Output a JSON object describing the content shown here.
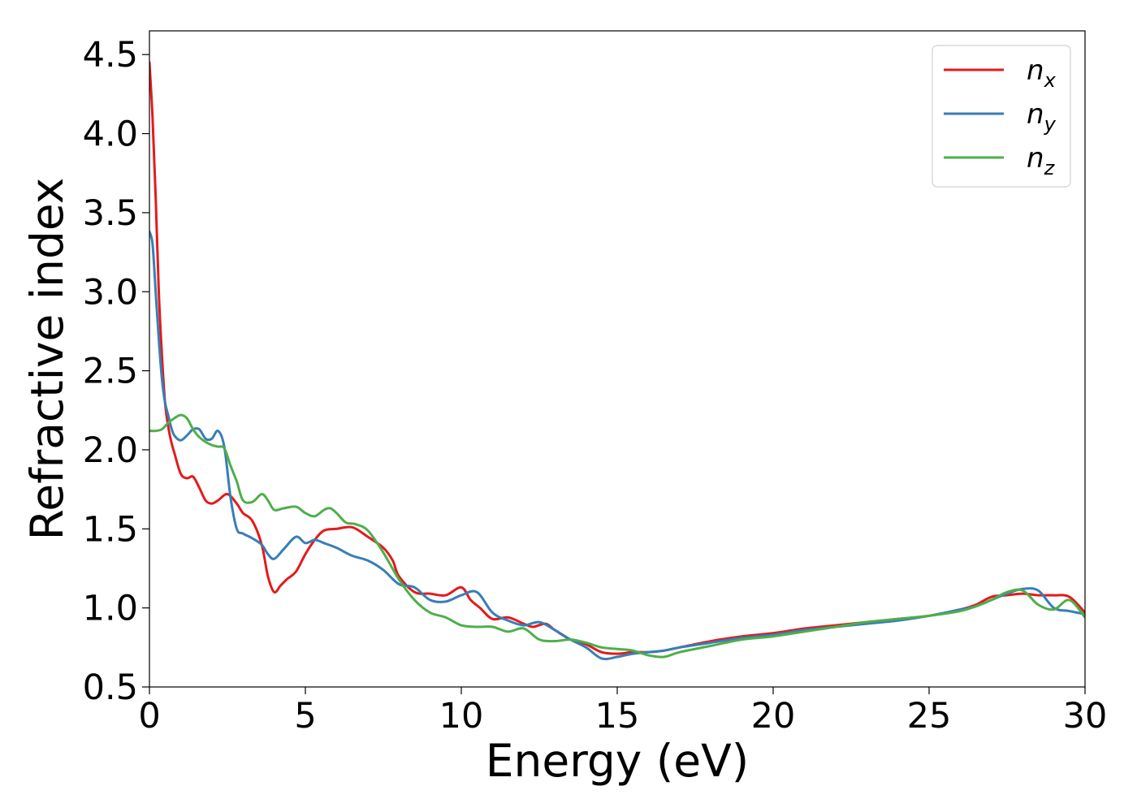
{
  "chart_data": {
    "type": "line",
    "xlabel": "Energy (eV)",
    "ylabel": "Refractive index",
    "xlim": [
      0,
      30
    ],
    "ylim": [
      0.5,
      4.65
    ],
    "xticks": [
      "0",
      "5",
      "10",
      "15",
      "20",
      "25",
      "30"
    ],
    "yticks": [
      "0.5",
      "1.0",
      "1.5",
      "2.0",
      "2.5",
      "3.0",
      "3.5",
      "4.0",
      "4.5"
    ],
    "xtick_values": [
      0,
      5,
      10,
      15,
      20,
      25,
      30
    ],
    "ytick_values": [
      0.5,
      1.0,
      1.5,
      2.0,
      2.5,
      3.0,
      3.5,
      4.0,
      4.5
    ],
    "grid": false,
    "legend_position": "top-right",
    "series": [
      {
        "name": "n",
        "subscript": "x",
        "color": "#e41a1c",
        "x": [
          0,
          0.1,
          0.2,
          0.3,
          0.4,
          0.5,
          0.6,
          0.7,
          0.8,
          1.0,
          1.2,
          1.4,
          1.6,
          1.8,
          2.0,
          2.2,
          2.5,
          2.8,
          3.0,
          3.3,
          3.6,
          3.8,
          4.0,
          4.2,
          4.4,
          4.7,
          5.0,
          5.3,
          5.6,
          6.0,
          6.5,
          7.0,
          7.5,
          7.8,
          8.0,
          8.5,
          9.0,
          9.5,
          10.0,
          10.3,
          10.6,
          11.0,
          11.5,
          12.0,
          12.3,
          12.7,
          13.0,
          13.5,
          14.0,
          14.5,
          15.0,
          15.5,
          16.0,
          16.5,
          17.0,
          18.0,
          19.0,
          20.0,
          21.0,
          22.0,
          23.0,
          24.0,
          25.0,
          26.0,
          26.5,
          27.0,
          27.5,
          28.0,
          28.5,
          29.0,
          29.5,
          30.0
        ],
        "y": [
          4.45,
          4.1,
          3.6,
          3.0,
          2.6,
          2.3,
          2.15,
          2.05,
          1.98,
          1.85,
          1.82,
          1.83,
          1.76,
          1.68,
          1.66,
          1.68,
          1.72,
          1.66,
          1.6,
          1.55,
          1.4,
          1.2,
          1.1,
          1.14,
          1.18,
          1.23,
          1.34,
          1.43,
          1.49,
          1.5,
          1.51,
          1.45,
          1.38,
          1.3,
          1.2,
          1.1,
          1.09,
          1.08,
          1.13,
          1.05,
          1.0,
          0.93,
          0.94,
          0.9,
          0.88,
          0.9,
          0.86,
          0.8,
          0.77,
          0.72,
          0.71,
          0.72,
          0.72,
          0.73,
          0.75,
          0.79,
          0.82,
          0.84,
          0.87,
          0.89,
          0.91,
          0.93,
          0.95,
          0.99,
          1.02,
          1.07,
          1.08,
          1.09,
          1.08,
          1.08,
          1.07,
          0.97
        ]
      },
      {
        "name": "n",
        "subscript": "y",
        "color": "#377eb8",
        "x": [
          0,
          0.1,
          0.2,
          0.3,
          0.4,
          0.5,
          0.6,
          0.7,
          0.8,
          1.0,
          1.2,
          1.4,
          1.6,
          1.8,
          2.0,
          2.2,
          2.4,
          2.6,
          2.8,
          3.0,
          3.3,
          3.6,
          3.8,
          4.0,
          4.3,
          4.7,
          5.0,
          5.3,
          5.6,
          6.0,
          6.5,
          7.0,
          7.5,
          8.0,
          8.5,
          9.0,
          9.5,
          10.0,
          10.5,
          11.0,
          11.5,
          12.0,
          12.5,
          13.0,
          13.5,
          14.0,
          14.5,
          15.0,
          15.5,
          16.0,
          16.5,
          17.0,
          18.0,
          19.0,
          20.0,
          21.0,
          22.0,
          23.0,
          24.0,
          25.0,
          26.0,
          26.5,
          27.0,
          27.5,
          28.0,
          28.5,
          29.0,
          29.5,
          30.0
        ],
        "y": [
          3.38,
          3.3,
          3.0,
          2.7,
          2.45,
          2.3,
          2.22,
          2.14,
          2.09,
          2.06,
          2.09,
          2.13,
          2.13,
          2.07,
          2.07,
          2.12,
          2.02,
          1.7,
          1.5,
          1.47,
          1.44,
          1.4,
          1.34,
          1.31,
          1.37,
          1.45,
          1.41,
          1.43,
          1.41,
          1.38,
          1.33,
          1.3,
          1.24,
          1.15,
          1.13,
          1.05,
          1.04,
          1.08,
          1.1,
          0.97,
          0.92,
          0.89,
          0.91,
          0.86,
          0.8,
          0.75,
          0.68,
          0.69,
          0.71,
          0.72,
          0.73,
          0.75,
          0.78,
          0.81,
          0.83,
          0.86,
          0.88,
          0.9,
          0.92,
          0.95,
          0.99,
          1.01,
          1.05,
          1.09,
          1.12,
          1.11,
          1.0,
          0.98,
          0.96
        ]
      },
      {
        "name": "n",
        "subscript": "z",
        "color": "#4daf4a",
        "x": [
          0,
          0.2,
          0.4,
          0.6,
          0.8,
          1.0,
          1.2,
          1.4,
          1.6,
          1.8,
          2.0,
          2.2,
          2.4,
          2.6,
          2.8,
          3.0,
          3.3,
          3.6,
          3.8,
          4.0,
          4.3,
          4.7,
          5.0,
          5.3,
          5.6,
          5.8,
          6.0,
          6.3,
          6.6,
          7.0,
          7.5,
          8.0,
          8.5,
          9.0,
          9.5,
          10.0,
          10.5,
          11.0,
          11.5,
          12.0,
          12.5,
          13.0,
          13.5,
          14.0,
          14.5,
          15.0,
          15.5,
          16.0,
          16.5,
          17.0,
          18.0,
          19.0,
          20.0,
          21.0,
          22.0,
          23.0,
          24.0,
          25.0,
          26.0,
          26.5,
          27.0,
          27.5,
          28.0,
          28.5,
          29.0,
          29.5,
          30.0
        ],
        "y": [
          2.12,
          2.12,
          2.13,
          2.17,
          2.2,
          2.22,
          2.2,
          2.13,
          2.08,
          2.05,
          2.03,
          2.02,
          2.01,
          1.9,
          1.8,
          1.68,
          1.67,
          1.72,
          1.68,
          1.62,
          1.63,
          1.64,
          1.6,
          1.58,
          1.62,
          1.63,
          1.6,
          1.54,
          1.53,
          1.49,
          1.35,
          1.18,
          1.05,
          0.97,
          0.94,
          0.89,
          0.88,
          0.88,
          0.85,
          0.87,
          0.8,
          0.79,
          0.8,
          0.78,
          0.75,
          0.74,
          0.73,
          0.7,
          0.69,
          0.72,
          0.76,
          0.8,
          0.82,
          0.85,
          0.88,
          0.91,
          0.93,
          0.95,
          0.98,
          1.01,
          1.05,
          1.1,
          1.11,
          1.02,
          0.99,
          1.05,
          0.94
        ]
      }
    ]
  }
}
